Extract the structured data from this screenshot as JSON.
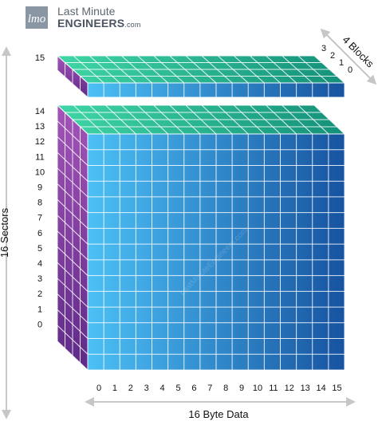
{
  "brand": {
    "badge_text": "lmo",
    "line1": "Last Minute",
    "line2": "ENGINEERS",
    "suffix": ".com"
  },
  "diagram": {
    "title_left": "16 Sectors",
    "title_bottom": "16 Byte Data",
    "title_blocks": "4 Blocks",
    "sector_numbers": [
      "14",
      "13",
      "12",
      "11",
      "10",
      "9",
      "8",
      "7",
      "6",
      "5",
      "4",
      "3",
      "2",
      "1",
      "0"
    ],
    "trailer_sector_number": "15",
    "byte_numbers": [
      "0",
      "1",
      "2",
      "3",
      "4",
      "5",
      "6",
      "7",
      "8",
      "9",
      "10",
      "11",
      "12",
      "13",
      "14",
      "15"
    ],
    "block_numbers": [
      "3",
      "2",
      "1",
      "0"
    ],
    "watermark": "LastMinuteEngineers.com",
    "colors": {
      "front_light": "#4cc0f5",
      "front_dark": "#1753a0",
      "top_light": "#3fd6a6",
      "top_dark": "#14907a",
      "side_light": "#a354b8",
      "side_dark": "#5e2a88",
      "grid_line": "#ffffff"
    }
  }
}
